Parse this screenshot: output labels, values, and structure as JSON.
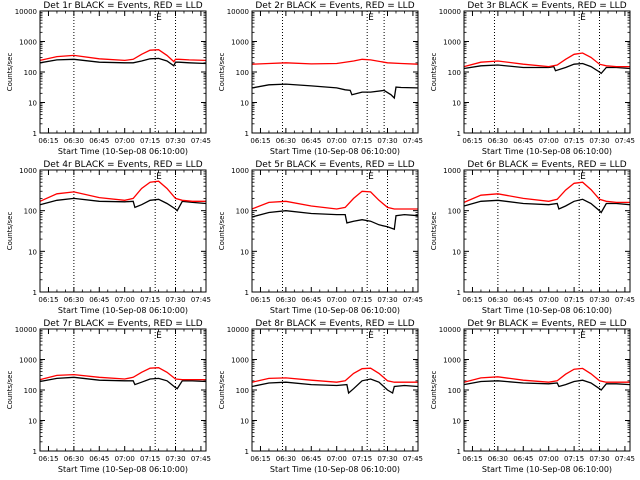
{
  "colors": {
    "events": "#000000",
    "lld": "#ff0000",
    "axes": "#000000",
    "background": "#ffffff"
  },
  "x_ticks": [
    "06:15",
    "06:30",
    "06:45",
    "07:00",
    "07:15",
    "07:30",
    "07:45"
  ],
  "y_ticks": [
    "1",
    "10",
    "100",
    "1000",
    "10000"
  ],
  "ylabel": "Counts/sec",
  "xlabel": "Start Time (10-Sep-08 06:10:00)",
  "marker_label": "E",
  "chart_data": [
    {
      "type": "line",
      "title": "Det 1r BLACK = Events, RED = LLD",
      "xlim": [
        "06:10",
        "07:48"
      ],
      "yscale": "log",
      "ylim": [
        1,
        10000
      ],
      "vlines": [
        "06:30",
        "07:18",
        "07:30"
      ],
      "marker_time": "07:18",
      "series": [
        {
          "name": "Events",
          "x": [
            "06:10",
            "06:20",
            "06:30",
            "06:45",
            "07:00",
            "07:05",
            "07:10",
            "07:15",
            "07:20",
            "07:25",
            "07:29",
            "07:30",
            "07:32",
            "07:38",
            "07:48"
          ],
          "y": [
            200,
            250,
            260,
            210,
            200,
            200,
            230,
            270,
            280,
            230,
            160,
            210,
            210,
            200,
            190
          ]
        },
        {
          "name": "LLD",
          "x": [
            "06:10",
            "06:20",
            "06:30",
            "06:45",
            "07:00",
            "07:05",
            "07:10",
            "07:15",
            "07:20",
            "07:25",
            "07:29",
            "07:30",
            "07:32",
            "07:38",
            "07:48"
          ],
          "y": [
            240,
            320,
            350,
            270,
            240,
            260,
            380,
            520,
            540,
            350,
            220,
            260,
            260,
            250,
            240
          ]
        }
      ]
    },
    {
      "type": "line",
      "title": "Det 2r BLACK = Events, RED = LLD",
      "xlim": [
        "06:10",
        "07:48"
      ],
      "yscale": "log",
      "ylim": [
        1,
        10000
      ],
      "vlines": [
        "06:28",
        "07:18",
        "07:28"
      ],
      "marker_time": "07:18",
      "series": [
        {
          "name": "Events",
          "x": [
            "06:10",
            "06:20",
            "06:30",
            "06:45",
            "07:00",
            "07:05",
            "07:08",
            "07:09",
            "07:15",
            "07:20",
            "07:28",
            "07:32",
            "07:34",
            "07:35",
            "07:38",
            "07:48"
          ],
          "y": [
            30,
            38,
            40,
            35,
            30,
            26,
            25,
            18,
            22,
            22,
            25,
            18,
            14,
            32,
            31,
            30
          ]
        },
        {
          "name": "LLD",
          "x": [
            "06:10",
            "06:20",
            "06:30",
            "06:45",
            "07:00",
            "07:10",
            "07:15",
            "07:20",
            "07:30",
            "07:38",
            "07:48"
          ],
          "y": [
            180,
            190,
            200,
            185,
            190,
            230,
            260,
            250,
            200,
            190,
            180
          ]
        }
      ]
    },
    {
      "type": "line",
      "title": "Det 3r BLACK = Events, RED = LLD",
      "xlim": [
        "06:10",
        "07:48"
      ],
      "yscale": "log",
      "ylim": [
        1,
        10000
      ],
      "vlines": [
        "06:28",
        "07:18",
        "07:30"
      ],
      "marker_time": "07:18",
      "series": [
        {
          "name": "Events",
          "x": [
            "06:10",
            "06:20",
            "06:30",
            "06:45",
            "07:00",
            "07:03",
            "07:04",
            "07:10",
            "07:15",
            "07:20",
            "07:25",
            "07:30",
            "07:31",
            "07:34",
            "07:40",
            "07:48"
          ],
          "y": [
            130,
            160,
            170,
            140,
            140,
            150,
            110,
            140,
            180,
            190,
            150,
            100,
            90,
            140,
            140,
            130
          ]
        },
        {
          "name": "LLD",
          "x": [
            "06:10",
            "06:20",
            "06:30",
            "06:45",
            "07:00",
            "07:05",
            "07:10",
            "07:15",
            "07:20",
            "07:25",
            "07:30",
            "07:34",
            "07:40",
            "07:48"
          ],
          "y": [
            150,
            210,
            230,
            180,
            150,
            170,
            260,
            380,
            420,
            300,
            180,
            160,
            150,
            150
          ]
        }
      ]
    },
    {
      "type": "line",
      "title": "Det 4r BLACK = Events, RED = LLD",
      "xlim": [
        "06:10",
        "07:48"
      ],
      "yscale": "log",
      "ylim": [
        1,
        1000
      ],
      "vlines": [
        "06:30",
        "07:18",
        "07:30"
      ],
      "marker_time": "07:18",
      "series": [
        {
          "name": "Events",
          "x": [
            "06:10",
            "06:20",
            "06:30",
            "06:45",
            "07:00",
            "07:05",
            "07:06",
            "07:10",
            "07:15",
            "07:20",
            "07:25",
            "07:30",
            "07:31",
            "07:34",
            "07:40",
            "07:48"
          ],
          "y": [
            140,
            180,
            200,
            170,
            165,
            170,
            120,
            140,
            180,
            190,
            150,
            110,
            100,
            170,
            160,
            150
          ]
        },
        {
          "name": "LLD",
          "x": [
            "06:10",
            "06:20",
            "06:30",
            "06:45",
            "07:00",
            "07:05",
            "07:10",
            "07:15",
            "07:20",
            "07:25",
            "07:30",
            "07:34",
            "07:40",
            "07:48"
          ],
          "y": [
            170,
            260,
            290,
            210,
            180,
            200,
            350,
            500,
            530,
            350,
            200,
            180,
            170,
            170
          ]
        }
      ]
    },
    {
      "type": "line",
      "title": "Det 5r BLACK = Events, RED = LLD",
      "xlim": [
        "06:10",
        "07:48"
      ],
      "yscale": "log",
      "ylim": [
        1,
        1000
      ],
      "vlines": [
        "06:28",
        "07:18",
        "07:30"
      ],
      "marker_time": "07:18",
      "series": [
        {
          "name": "Events",
          "x": [
            "06:10",
            "06:20",
            "06:30",
            "06:45",
            "07:00",
            "07:05",
            "07:06",
            "07:10",
            "07:15",
            "07:20",
            "07:25",
            "07:30",
            "07:34",
            "07:35",
            "07:40",
            "07:48"
          ],
          "y": [
            70,
            90,
            100,
            85,
            80,
            80,
            50,
            55,
            60,
            55,
            45,
            40,
            35,
            75,
            80,
            75
          ]
        },
        {
          "name": "LLD",
          "x": [
            "06:10",
            "06:20",
            "06:30",
            "06:45",
            "07:00",
            "07:05",
            "07:10",
            "07:15",
            "07:20",
            "07:25",
            "07:30",
            "07:34",
            "07:40",
            "07:48"
          ],
          "y": [
            110,
            160,
            170,
            130,
            110,
            120,
            200,
            300,
            290,
            180,
            120,
            110,
            110,
            110
          ]
        }
      ]
    },
    {
      "type": "line",
      "title": "Det 6r BLACK = Events, RED = LLD",
      "xlim": [
        "06:10",
        "07:48"
      ],
      "yscale": "log",
      "ylim": [
        1,
        1000
      ],
      "vlines": [
        "06:30",
        "07:18",
        "07:30"
      ],
      "marker_time": "07:18",
      "series": [
        {
          "name": "Events",
          "x": [
            "06:10",
            "06:20",
            "06:30",
            "06:45",
            "07:00",
            "07:05",
            "07:06",
            "07:10",
            "07:15",
            "07:20",
            "07:25",
            "07:30",
            "07:31",
            "07:34",
            "07:40",
            "07:48"
          ],
          "y": [
            130,
            170,
            180,
            150,
            140,
            150,
            110,
            130,
            170,
            190,
            150,
            100,
            90,
            150,
            150,
            140
          ]
        },
        {
          "name": "LLD",
          "x": [
            "06:10",
            "06:20",
            "06:30",
            "06:45",
            "07:00",
            "07:05",
            "07:10",
            "07:15",
            "07:20",
            "07:25",
            "07:30",
            "07:34",
            "07:40",
            "07:48"
          ],
          "y": [
            160,
            240,
            260,
            200,
            170,
            190,
            320,
            470,
            500,
            330,
            190,
            170,
            160,
            160
          ]
        }
      ]
    },
    {
      "type": "line",
      "title": "Det 7r BLACK = Events, RED = LLD",
      "xlim": [
        "06:10",
        "07:48"
      ],
      "yscale": "log",
      "ylim": [
        1,
        10000
      ],
      "vlines": [
        "06:30",
        "07:18",
        "07:30"
      ],
      "marker_time": "07:18",
      "series": [
        {
          "name": "Events",
          "x": [
            "06:10",
            "06:20",
            "06:30",
            "06:45",
            "07:00",
            "07:05",
            "07:06",
            "07:10",
            "07:15",
            "07:20",
            "07:25",
            "07:30",
            "07:31",
            "07:34",
            "07:40",
            "07:48"
          ],
          "y": [
            190,
            240,
            260,
            210,
            200,
            200,
            150,
            180,
            230,
            240,
            200,
            120,
            110,
            200,
            200,
            190
          ]
        },
        {
          "name": "LLD",
          "x": [
            "06:10",
            "06:20",
            "06:30",
            "06:45",
            "07:00",
            "07:05",
            "07:10",
            "07:15",
            "07:20",
            "07:25",
            "07:30",
            "07:34",
            "07:40",
            "07:48"
          ],
          "y": [
            220,
            300,
            320,
            260,
            230,
            260,
            380,
            520,
            540,
            380,
            230,
            220,
            220,
            220
          ]
        }
      ]
    },
    {
      "type": "line",
      "title": "Det 8r BLACK = Events, RED = LLD",
      "xlim": [
        "06:10",
        "07:48"
      ],
      "yscale": "log",
      "ylim": [
        1,
        10000
      ],
      "vlines": [
        "06:28",
        "07:18",
        "07:28"
      ],
      "marker_time": "07:18",
      "series": [
        {
          "name": "Events",
          "x": [
            "06:10",
            "06:20",
            "06:30",
            "06:45",
            "07:00",
            "07:06",
            "07:07",
            "07:10",
            "07:15",
            "07:20",
            "07:25",
            "07:30",
            "07:33",
            "07:34",
            "07:40",
            "07:48"
          ],
          "y": [
            130,
            170,
            180,
            150,
            140,
            150,
            80,
            110,
            200,
            230,
            180,
            100,
            80,
            130,
            140,
            130
          ]
        },
        {
          "name": "LLD",
          "x": [
            "06:10",
            "06:20",
            "06:30",
            "06:45",
            "07:00",
            "07:05",
            "07:10",
            "07:15",
            "07:20",
            "07:25",
            "07:30",
            "07:34",
            "07:40",
            "07:48"
          ],
          "y": [
            180,
            240,
            250,
            210,
            180,
            200,
            350,
            500,
            520,
            350,
            200,
            180,
            180,
            180
          ]
        }
      ]
    },
    {
      "type": "line",
      "title": "Det 9r BLACK = Events, RED = LLD",
      "xlim": [
        "06:10",
        "07:48"
      ],
      "yscale": "log",
      "ylim": [
        1,
        10000
      ],
      "vlines": [
        "06:28",
        "07:18",
        "07:30"
      ],
      "marker_time": "07:18",
      "series": [
        {
          "name": "Events",
          "x": [
            "06:10",
            "06:20",
            "06:30",
            "06:45",
            "07:00",
            "07:05",
            "07:06",
            "07:10",
            "07:15",
            "07:20",
            "07:25",
            "07:30",
            "07:31",
            "07:34",
            "07:40",
            "07:48"
          ],
          "y": [
            150,
            190,
            200,
            170,
            160,
            170,
            130,
            150,
            190,
            210,
            170,
            110,
            100,
            160,
            160,
            150
          ]
        },
        {
          "name": "LLD",
          "x": [
            "06:10",
            "06:20",
            "06:30",
            "06:45",
            "07:00",
            "07:05",
            "07:10",
            "07:15",
            "07:20",
            "07:25",
            "07:30",
            "07:34",
            "07:40",
            "07:48"
          ],
          "y": [
            180,
            250,
            270,
            210,
            180,
            200,
            330,
            480,
            510,
            340,
            200,
            180,
            180,
            180
          ]
        }
      ]
    }
  ]
}
